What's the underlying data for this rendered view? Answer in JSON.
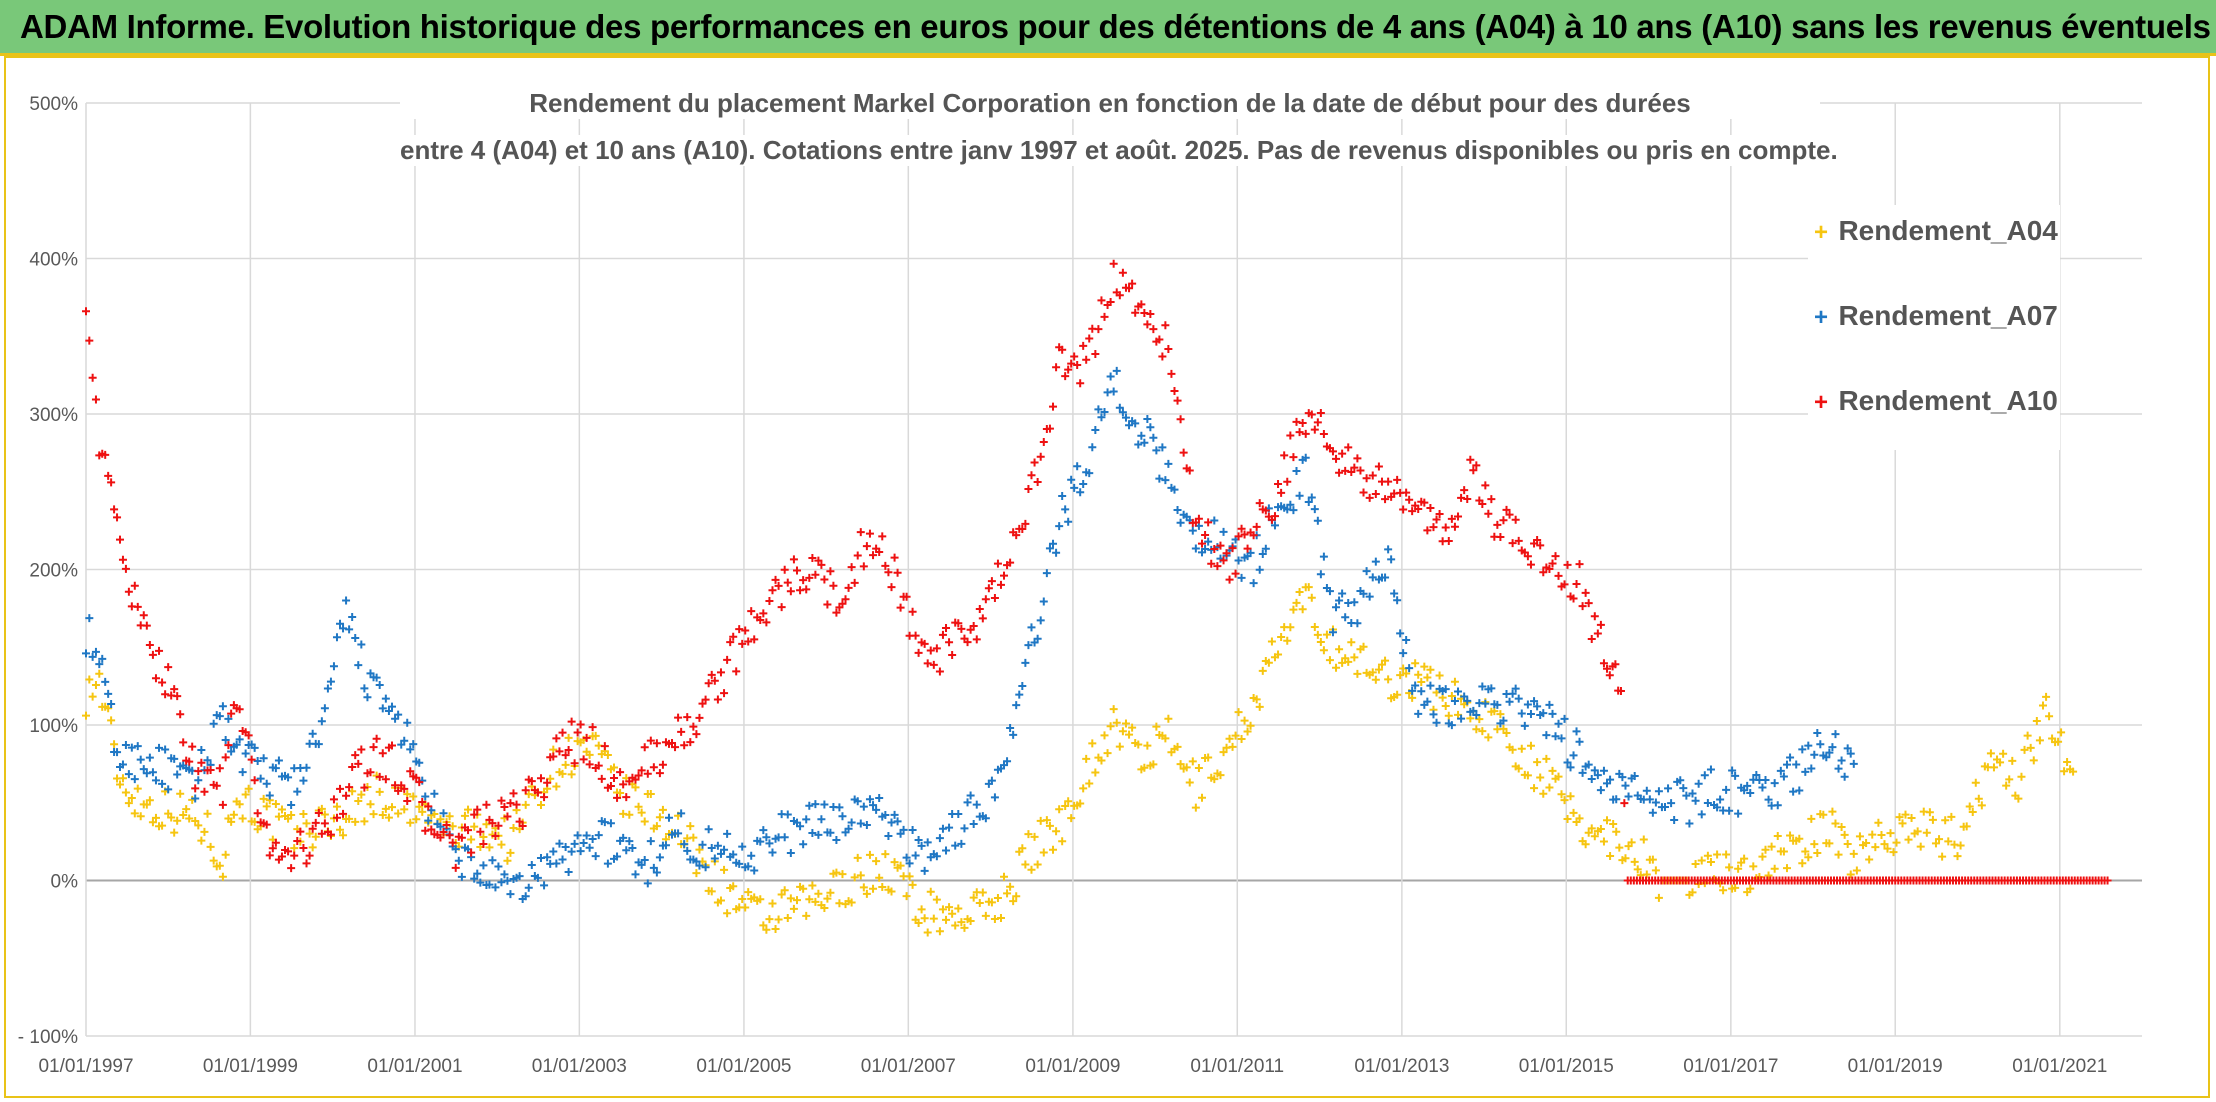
{
  "banner": {
    "title": "ADAM Informe. Evolution historique des performances en euros pour des détentions de 4 ans (A04) à 10 ans (A10) sans les revenus éventuels"
  },
  "colors": {
    "A04": "#f6c510",
    "A07": "#1f77c4",
    "A10": "#ee1111",
    "banner": "#79c879",
    "frame": "#e9c318"
  },
  "chart_data": {
    "type": "scatter",
    "title_line1": "Rendement du placement Markel Corporation en fonction de la date de début pour des durées",
    "title_line2": "entre 4 (A04) et 10 ans (A10). Cotations entre janv 1997 et août. 2025. Pas de revenus disponibles ou pris en compte.",
    "y_ticks": [
      "500%",
      "400%",
      "300%",
      "200%",
      "100%",
      "0%",
      "- 100%"
    ],
    "ylim": [
      -100,
      500
    ],
    "x_ticks": [
      "01/01/1997",
      "01/01/1999",
      "01/01/2001",
      "01/01/2003",
      "01/01/2005",
      "01/01/2007",
      "01/01/2009",
      "01/01/2011",
      "01/01/2013",
      "01/01/2015",
      "01/01/2017",
      "01/01/2019",
      "01/01/2021"
    ],
    "xlim": [
      "1997-01-01",
      "2022-01-01"
    ],
    "grid": true,
    "legend_position": "top-right",
    "marker": "+",
    "series": [
      {
        "name": "Rendement_A04",
        "color": "#f6c510",
        "points": [
          [
            "1997-01-01",
            120
          ],
          [
            "1997-03-01",
            128
          ],
          [
            "1997-06-01",
            65
          ],
          [
            "1997-09-01",
            50
          ],
          [
            "1998-01-01",
            45
          ],
          [
            "1998-05-01",
            42
          ],
          [
            "1998-09-01",
            15
          ],
          [
            "1998-11-01",
            55
          ],
          [
            "1999-03-01",
            42
          ],
          [
            "1999-07-01",
            30
          ],
          [
            "1999-11-01",
            35
          ],
          [
            "2000-03-01",
            42
          ],
          [
            "2000-07-01",
            55
          ],
          [
            "2000-11-01",
            48
          ],
          [
            "2001-03-01",
            40
          ],
          [
            "2001-07-01",
            30
          ],
          [
            "2001-11-01",
            35
          ],
          [
            "2002-03-01",
            25
          ],
          [
            "2002-07-01",
            60
          ],
          [
            "2002-11-01",
            80
          ],
          [
            "2003-03-01",
            85
          ],
          [
            "2003-07-01",
            55
          ],
          [
            "2003-11-01",
            45
          ],
          [
            "2004-03-01",
            35
          ],
          [
            "2004-07-01",
            10
          ],
          [
            "2004-11-01",
            -10
          ],
          [
            "2005-03-01",
            -25
          ],
          [
            "2005-07-01",
            -20
          ],
          [
            "2005-11-01",
            -15
          ],
          [
            "2006-03-01",
            -5
          ],
          [
            "2006-07-01",
            5
          ],
          [
            "2006-11-01",
            5
          ],
          [
            "2007-03-01",
            -20
          ],
          [
            "2007-07-01",
            -22
          ],
          [
            "2007-11-01",
            -20
          ],
          [
            "2008-03-01",
            -10
          ],
          [
            "2008-07-01",
            20
          ],
          [
            "2008-11-01",
            35
          ],
          [
            "2009-03-01",
            70
          ],
          [
            "2009-07-01",
            100
          ],
          [
            "2009-11-01",
            80
          ],
          [
            "2010-03-01",
            90
          ],
          [
            "2010-07-01",
            60
          ],
          [
            "2010-11-01",
            80
          ],
          [
            "2011-03-01",
            110
          ],
          [
            "2011-07-01",
            150
          ],
          [
            "2011-11-01",
            180
          ],
          [
            "2012-03-01",
            150
          ],
          [
            "2012-07-01",
            140
          ],
          [
            "2012-11-01",
            130
          ],
          [
            "2013-03-01",
            130
          ],
          [
            "2013-07-01",
            120
          ],
          [
            "2013-11-01",
            110
          ],
          [
            "2014-03-01",
            100
          ],
          [
            "2014-07-01",
            80
          ],
          [
            "2014-11-01",
            60
          ],
          [
            "2015-03-01",
            35
          ],
          [
            "2015-07-01",
            30
          ],
          [
            "2015-11-01",
            20
          ],
          [
            "2016-03-01",
            0
          ],
          [
            "2016-07-01",
            0
          ],
          [
            "2016-11-01",
            5
          ],
          [
            "2017-03-01",
            5
          ],
          [
            "2017-07-01",
            15
          ],
          [
            "2017-11-01",
            20
          ],
          [
            "2018-03-01",
            35
          ],
          [
            "2018-07-01",
            15
          ],
          [
            "2018-11-01",
            30
          ],
          [
            "2019-03-01",
            35
          ],
          [
            "2019-07-01",
            30
          ],
          [
            "2019-11-01",
            25
          ],
          [
            "2020-03-01",
            80
          ],
          [
            "2020-07-01",
            65
          ],
          [
            "2020-11-01",
            110
          ],
          [
            "2021-03-01",
            70
          ]
        ]
      },
      {
        "name": "Rendement_A07",
        "color": "#1f77c4",
        "points": [
          [
            "1997-01-01",
            160
          ],
          [
            "1997-03-01",
            140
          ],
          [
            "1997-06-01",
            75
          ],
          [
            "1997-09-01",
            80
          ],
          [
            "1998-01-01",
            70
          ],
          [
            "1998-05-01",
            60
          ],
          [
            "1998-09-01",
            110
          ],
          [
            "1998-11-01",
            80
          ],
          [
            "1999-03-01",
            70
          ],
          [
            "1999-07-01",
            60
          ],
          [
            "1999-11-01",
            90
          ],
          [
            "2000-03-01",
            170
          ],
          [
            "2000-07-01",
            120
          ],
          [
            "2000-11-01",
            100
          ],
          [
            "2001-03-01",
            50
          ],
          [
            "2001-07-01",
            15
          ],
          [
            "2001-11-01",
            5
          ],
          [
            "2002-03-01",
            -10
          ],
          [
            "2002-07-01",
            5
          ],
          [
            "2002-11-01",
            15
          ],
          [
            "2003-03-01",
            30
          ],
          [
            "2003-07-01",
            20
          ],
          [
            "2003-11-01",
            10
          ],
          [
            "2004-03-01",
            35
          ],
          [
            "2004-07-01",
            20
          ],
          [
            "2004-11-01",
            20
          ],
          [
            "2005-03-01",
            20
          ],
          [
            "2005-07-01",
            30
          ],
          [
            "2005-11-01",
            35
          ],
          [
            "2006-03-01",
            40
          ],
          [
            "2006-07-01",
            45
          ],
          [
            "2006-11-01",
            35
          ],
          [
            "2007-03-01",
            15
          ],
          [
            "2007-07-01",
            30
          ],
          [
            "2007-11-01",
            45
          ],
          [
            "2008-03-01",
            70
          ],
          [
            "2008-07-01",
            150
          ],
          [
            "2008-11-01",
            230
          ],
          [
            "2009-03-01",
            270
          ],
          [
            "2009-07-01",
            320
          ],
          [
            "2009-11-01",
            290
          ],
          [
            "2010-03-01",
            260
          ],
          [
            "2010-07-01",
            220
          ],
          [
            "2010-11-01",
            220
          ],
          [
            "2011-03-01",
            200
          ],
          [
            "2011-07-01",
            240
          ],
          [
            "2011-11-01",
            260
          ],
          [
            "2012-03-01",
            170
          ],
          [
            "2012-07-01",
            180
          ],
          [
            "2012-11-01",
            210
          ],
          [
            "2013-03-01",
            120
          ],
          [
            "2013-07-01",
            110
          ],
          [
            "2013-11-01",
            120
          ],
          [
            "2014-03-01",
            115
          ],
          [
            "2014-07-01",
            110
          ],
          [
            "2014-11-01",
            100
          ],
          [
            "2015-03-01",
            80
          ],
          [
            "2015-07-01",
            60
          ],
          [
            "2015-11-01",
            55
          ],
          [
            "2016-03-01",
            55
          ],
          [
            "2016-07-01",
            50
          ],
          [
            "2016-11-01",
            60
          ],
          [
            "2017-03-01",
            55
          ],
          [
            "2017-07-01",
            60
          ],
          [
            "2017-11-01",
            70
          ],
          [
            "2018-03-01",
            90
          ],
          [
            "2018-07-01",
            75
          ]
        ]
      },
      {
        "name": "Rendement_A10",
        "color": "#ee1111",
        "points": [
          [
            "1997-01-01",
            380
          ],
          [
            "1997-03-01",
            280
          ],
          [
            "1997-06-01",
            220
          ],
          [
            "1997-09-01",
            160
          ],
          [
            "1998-01-01",
            130
          ],
          [
            "1998-05-01",
            70
          ],
          [
            "1998-09-01",
            60
          ],
          [
            "1998-11-01",
            120
          ],
          [
            "1999-03-01",
            30
          ],
          [
            "1999-07-01",
            15
          ],
          [
            "1999-11-01",
            30
          ],
          [
            "2000-03-01",
            60
          ],
          [
            "2000-07-01",
            80
          ],
          [
            "2000-11-01",
            70
          ],
          [
            "2001-03-01",
            40
          ],
          [
            "2001-07-01",
            20
          ],
          [
            "2001-11-01",
            35
          ],
          [
            "2002-03-01",
            40
          ],
          [
            "2002-07-01",
            60
          ],
          [
            "2002-11-01",
            90
          ],
          [
            "2003-03-01",
            85
          ],
          [
            "2003-07-01",
            60
          ],
          [
            "2003-11-01",
            75
          ],
          [
            "2004-03-01",
            90
          ],
          [
            "2004-07-01",
            110
          ],
          [
            "2004-11-01",
            140
          ],
          [
            "2005-03-01",
            170
          ],
          [
            "2005-07-01",
            190
          ],
          [
            "2005-11-01",
            200
          ],
          [
            "2006-03-01",
            180
          ],
          [
            "2006-07-01",
            220
          ],
          [
            "2006-11-01",
            200
          ],
          [
            "2007-03-01",
            140
          ],
          [
            "2007-07-01",
            150
          ],
          [
            "2007-11-01",
            160
          ],
          [
            "2008-03-01",
            200
          ],
          [
            "2008-07-01",
            250
          ],
          [
            "2008-11-01",
            330
          ],
          [
            "2009-03-01",
            330
          ],
          [
            "2009-07-01",
            390
          ],
          [
            "2009-11-01",
            370
          ],
          [
            "2010-03-01",
            340
          ],
          [
            "2010-07-01",
            230
          ],
          [
            "2010-11-01",
            200
          ],
          [
            "2011-03-01",
            220
          ],
          [
            "2011-07-01",
            250
          ],
          [
            "2011-11-01",
            300
          ],
          [
            "2012-03-01",
            280
          ],
          [
            "2012-07-01",
            260
          ],
          [
            "2012-11-01",
            250
          ],
          [
            "2013-03-01",
            240
          ],
          [
            "2013-07-01",
            220
          ],
          [
            "2013-11-01",
            260
          ],
          [
            "2014-03-01",
            230
          ],
          [
            "2014-07-01",
            220
          ],
          [
            "2014-11-01",
            200
          ],
          [
            "2015-03-01",
            190
          ],
          [
            "2015-07-01",
            140
          ],
          [
            "2015-09-01",
            120
          ],
          [
            "2015-10-01",
            0
          ],
          [
            "2016-06-01",
            0
          ],
          [
            "2017-01-01",
            0
          ],
          [
            "2017-09-01",
            0
          ],
          [
            "2018-05-01",
            0
          ],
          [
            "2019-01-01",
            0
          ],
          [
            "2019-09-01",
            0
          ],
          [
            "2020-05-01",
            0
          ],
          [
            "2021-01-01",
            0
          ],
          [
            "2021-08-01",
            0
          ]
        ]
      }
    ]
  }
}
